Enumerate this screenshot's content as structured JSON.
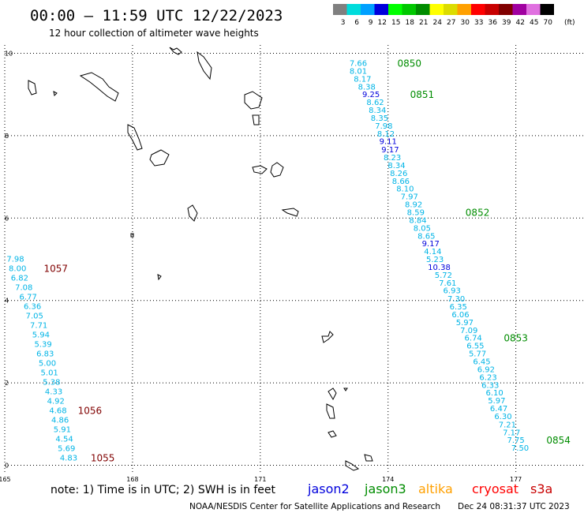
{
  "header": {
    "title": "00:00 — 11:59 UTC 12/22/2023",
    "subtitle": "12 hour collection of altimeter wave heights"
  },
  "scale": {
    "labels": [
      "3",
      "6",
      "9",
      "12",
      "15",
      "18",
      "21",
      "24",
      "27",
      "30",
      "33",
      "36",
      "39",
      "42",
      "45",
      "70"
    ],
    "unit": "(ft)",
    "colors": [
      "#808080",
      "#00dcdc",
      "#00a0ff",
      "#0000dc",
      "#00ff00",
      "#00c800",
      "#008c00",
      "#ffff00",
      "#dcdc00",
      "#ffa000",
      "#ff0000",
      "#c80000",
      "#800000",
      "#a000a0",
      "#e070e0",
      "#000000"
    ]
  },
  "footer": {
    "note": "note:  1) Time is in UTC; 2) SWH is in feet",
    "credit": "NOAA/NESDIS Center for Satellite Applications and Research",
    "timestamp": "Dec 24 08:31:37 UTC 2023",
    "missions": [
      {
        "name": "jason2",
        "color": "#0000dc"
      },
      {
        "name": "jason3",
        "color": "#008c00"
      },
      {
        "name": "altika",
        "color": "#ffa000"
      },
      {
        "name": "cryosat",
        "color": "#ff0000"
      },
      {
        "name": "s3a",
        "color": "#c80000"
      }
    ]
  },
  "chart_data": {
    "type": "scatter",
    "title": "00:00 — 11:59 UTC 12/22/2023",
    "subtitle": "12 hour collection of altimeter wave heights",
    "x_ticks": [
      "165",
      "168",
      "171",
      "174",
      "177"
    ],
    "y_ticks": [
      "0",
      "2",
      "4",
      "6",
      "8",
      "10"
    ],
    "xlim": [
      165,
      178.6
    ],
    "ylim": [
      -0.2,
      10.2
    ],
    "grid": true,
    "series": [
      {
        "track": "east",
        "color": "#00b4e6",
        "labels": [
          "7.66",
          "8.01",
          "8.17",
          "8.38",
          "9.25",
          "8.62",
          "8.34",
          "8.35",
          "7.98",
          "8.12",
          "9.11",
          "9.17",
          "8.23",
          "8.34",
          "8.26",
          "8.66",
          "8.10",
          "7.97",
          "8.92",
          "8.59",
          "8.84",
          "8.05",
          "8.65",
          "9.17",
          "4.14",
          "5.23",
          "10.38",
          "5.72",
          "7.61",
          "6.93",
          "7.30",
          "6.35",
          "6.06",
          "5.97",
          "7.09",
          "6.74",
          "6.55",
          "5.77",
          "6.45",
          "6.92",
          "6.23",
          "6.33",
          "6.10",
          "5.97",
          "6.47",
          "6.30",
          "7.21",
          "7.17",
          "7.75",
          "7.50"
        ],
        "points": [
          [
            173.3,
            9.75
          ],
          [
            173.3,
            9.56
          ],
          [
            173.4,
            9.37
          ],
          [
            173.5,
            9.18
          ],
          [
            173.6,
            8.99
          ],
          [
            173.7,
            8.8
          ],
          [
            173.75,
            8.61
          ],
          [
            173.8,
            8.42
          ],
          [
            173.9,
            8.23
          ],
          [
            173.95,
            8.04
          ],
          [
            174.0,
            7.85
          ],
          [
            174.05,
            7.65
          ],
          [
            174.1,
            7.46
          ],
          [
            174.2,
            7.27
          ],
          [
            174.25,
            7.08
          ],
          [
            174.3,
            6.89
          ],
          [
            174.4,
            6.7
          ],
          [
            174.5,
            6.51
          ],
          [
            174.6,
            6.32
          ],
          [
            174.65,
            6.13
          ],
          [
            174.7,
            5.94
          ],
          [
            174.8,
            5.75
          ],
          [
            174.9,
            5.56
          ],
          [
            175.0,
            5.37
          ],
          [
            175.05,
            5.18
          ],
          [
            175.1,
            4.99
          ],
          [
            175.2,
            4.8
          ],
          [
            175.3,
            4.61
          ],
          [
            175.4,
            4.42
          ],
          [
            175.5,
            4.23
          ],
          [
            175.6,
            4.03
          ],
          [
            175.65,
            3.84
          ],
          [
            175.7,
            3.65
          ],
          [
            175.8,
            3.46
          ],
          [
            175.9,
            3.27
          ],
          [
            176.0,
            3.08
          ],
          [
            176.05,
            2.89
          ],
          [
            176.1,
            2.7
          ],
          [
            176.2,
            2.51
          ],
          [
            176.3,
            2.32
          ],
          [
            176.35,
            2.13
          ],
          [
            176.4,
            1.94
          ],
          [
            176.5,
            1.75
          ],
          [
            176.55,
            1.56
          ],
          [
            176.6,
            1.37
          ],
          [
            176.7,
            1.18
          ],
          [
            176.8,
            0.98
          ],
          [
            176.9,
            0.79
          ],
          [
            177.0,
            0.6
          ],
          [
            177.1,
            0.41
          ]
        ],
        "label_colors": {
          "4": "#0000dc",
          "10": "#0000dc",
          "11": "#0000dc",
          "23": "#0000dc",
          "26": "#0000dc"
        },
        "time_labels": [
          {
            "text": "0850",
            "x": 174.5,
            "y": 9.75
          },
          {
            "text": "0851",
            "x": 174.8,
            "y": 8.99
          },
          {
            "text": "0852",
            "x": 176.1,
            "y": 6.13
          },
          {
            "text": "0853",
            "x": 177.0,
            "y": 3.08
          },
          {
            "text": "0854",
            "x": 178.0,
            "y": 0.6
          }
        ],
        "time_color": "#008c00"
      },
      {
        "track": "west",
        "color": "#00b4e6",
        "labels": [
          "7.98",
          "8.00",
          "6.82",
          "7.08",
          "6.77",
          "6.36",
          "7.05",
          "7.71",
          "5.94",
          "5.39",
          "6.83",
          "5.00",
          "5.01",
          "5.38",
          "4.33",
          "4.92",
          "4.68",
          "4.86",
          "5.91",
          "4.54",
          "5.69",
          "4.83"
        ],
        "points": [
          [
            165.25,
            5.0
          ],
          [
            165.3,
            4.77
          ],
          [
            165.35,
            4.54
          ],
          [
            165.45,
            4.31
          ],
          [
            165.55,
            4.08
          ],
          [
            165.65,
            3.85
          ],
          [
            165.7,
            3.62
          ],
          [
            165.8,
            3.39
          ],
          [
            165.85,
            3.16
          ],
          [
            165.9,
            2.93
          ],
          [
            165.95,
            2.7
          ],
          [
            166.0,
            2.47
          ],
          [
            166.05,
            2.24
          ],
          [
            166.1,
            2.01
          ],
          [
            166.15,
            1.78
          ],
          [
            166.2,
            1.55
          ],
          [
            166.25,
            1.32
          ],
          [
            166.3,
            1.09
          ],
          [
            166.35,
            0.86
          ],
          [
            166.4,
            0.63
          ],
          [
            166.45,
            0.4
          ],
          [
            166.5,
            0.17
          ]
        ],
        "label_colors": {},
        "time_labels": [
          {
            "text": "1057",
            "x": 166.2,
            "y": 4.77
          },
          {
            "text": "1056",
            "x": 167.0,
            "y": 1.32
          },
          {
            "text": "1055",
            "x": 167.3,
            "y": 0.17
          }
        ],
        "time_color": "#800000"
      }
    ]
  }
}
